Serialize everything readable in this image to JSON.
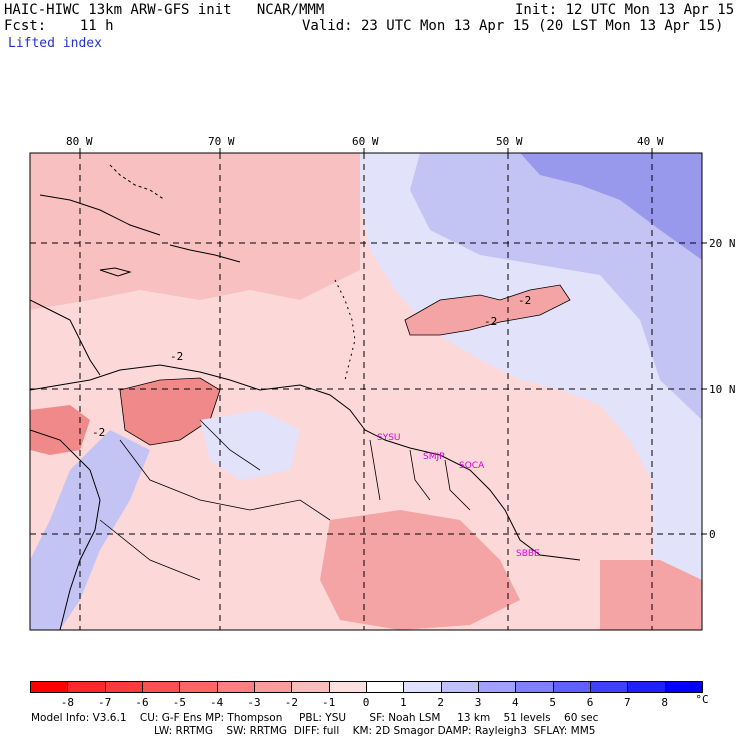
{
  "header": {
    "title": "HAIC-HIWC 13km ARW-GFS init   NCAR/MMM",
    "init": "Init: 12 UTC Mon 13 Apr 15",
    "fcst": "Fcst:    11 h",
    "valid": "Valid: 23 UTC Mon 13 Apr 15 (20 LST Mon 13 Apr 15)",
    "field": "Lifted index"
  },
  "map": {
    "lon_labels": [
      "80 W",
      "70 W",
      "60 W",
      "50 W",
      "40 W"
    ],
    "lat_labels": [
      "20 N",
      "10 N",
      "0"
    ],
    "contour_labels": [
      "-2",
      "-2",
      "-2",
      "-2"
    ],
    "stations": [
      "SYSU",
      "SMJP",
      "SOCA",
      "SBBE"
    ],
    "colors": {
      "strong_neg": "#f08a8a",
      "mid_neg": "#f8b4b4",
      "weak_neg": "#fcd8d8",
      "neutral": "#ffffff",
      "weak_pos": "#e2e2fa",
      "mid_pos": "#c4c4f4",
      "strong_pos": "#9898ec",
      "station": "#dd00dd"
    }
  },
  "colorbar": {
    "labels": [
      "-8",
      "-7",
      "-6",
      "-5",
      "-4",
      "-3",
      "-2",
      "-1",
      "0",
      "1",
      "2",
      "3",
      "4",
      "5",
      "6",
      "7",
      "8"
    ],
    "unit": "°C",
    "colors": [
      "#ff0000",
      "#ff2828",
      "#ff3a3a",
      "#ff5050",
      "#ff6666",
      "#ff8080",
      "#f89c9c",
      "#fbbcbc",
      "#fde0e0",
      "#ffffff",
      "#e0e0ff",
      "#c0c0ff",
      "#a0a0ff",
      "#8080ff",
      "#6060ff",
      "#4040ff",
      "#2020ff",
      "#0000ff"
    ]
  },
  "footer": {
    "line1": "Model Info: V3.6.1    CU: G-F Ens MP: Thompson     PBL: YSU       SF: Noah LSM     13 km    51 levels    60 sec",
    "line2": "LW: RRTMG    SW: RRTMG  DIFF: full    KM: 2D Smagor DAMP: Rayleigh3  SFLAY: MM5"
  }
}
